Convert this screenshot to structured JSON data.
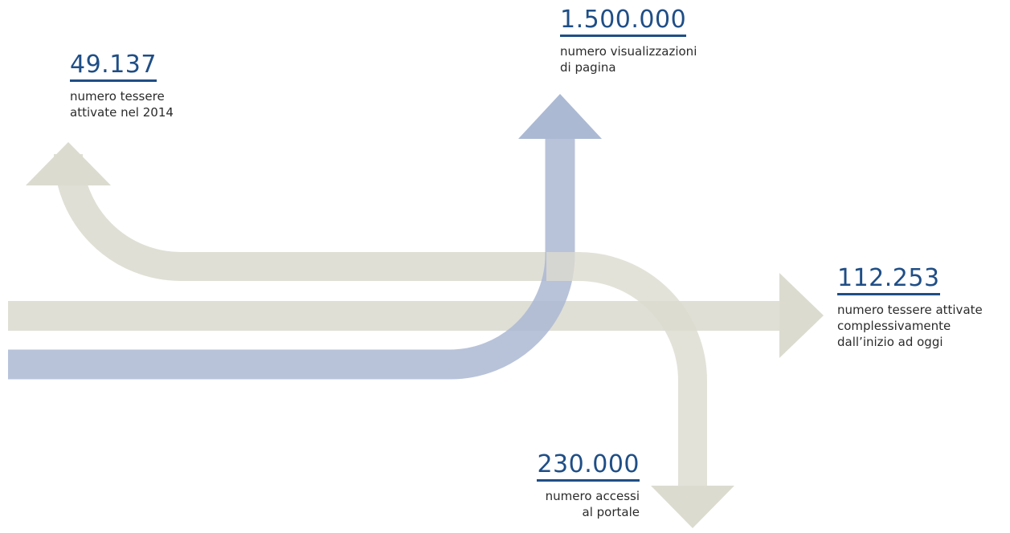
{
  "colors": {
    "beige_arrow": "#dcdbd0",
    "blue_arrow": "#abb9d3",
    "number_text": "#1f4e86",
    "description_text": "#2b2b2b"
  },
  "stats": {
    "tessere_2014": {
      "value": "49.137",
      "description": "numero tessere\nattivate nel 2014"
    },
    "visualizzazioni": {
      "value": "1.500.000",
      "description": "numero visualizzazioni\ndi pagina"
    },
    "tessere_totali": {
      "value": "112.253",
      "description": "numero tessere attivate\ncomplessivamente\ndall’inizio ad oggi"
    },
    "accessi": {
      "value": "230.000",
      "description": "numero accessi\nal portale"
    }
  }
}
